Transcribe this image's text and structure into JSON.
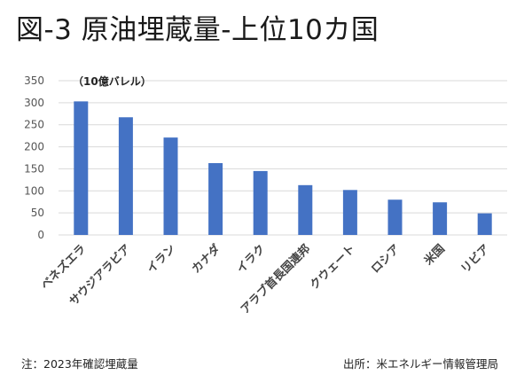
{
  "title": "図-3 原油埋蔵量-上位10カ国",
  "chart_data": {
    "type": "bar",
    "unit_label": "（10億バレル）",
    "categories": [
      "ベネズエラ",
      "サウジアラビア",
      "イラン",
      "カナダ",
      "イラク",
      "アラブ首長国連邦",
      "クウェート",
      "ロシア",
      "米国",
      "リビア"
    ],
    "values": [
      303,
      267,
      221,
      163,
      145,
      113,
      102,
      80,
      74,
      49
    ],
    "ylim": [
      0,
      350
    ],
    "yticks": [
      0,
      50,
      100,
      150,
      200,
      250,
      300,
      350
    ],
    "grid": true,
    "bar_color": "#4472C4",
    "grid_color": "#d9d9d9"
  },
  "footer": {
    "note": "注：2023年確認埋蔵量",
    "source": "出所：米エネルギー情報管理局"
  }
}
